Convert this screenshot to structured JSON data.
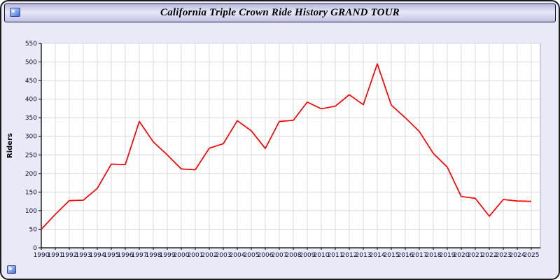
{
  "window": {
    "title": "California Triple Crown Ride History GRAND TOUR"
  },
  "colors": {
    "page_background": "#e9e9f8",
    "plot_background": "#ffffff",
    "grid": "#d8d8e2",
    "axis": "#000000",
    "line": "#ff0000",
    "tick_text": "#101040",
    "title_text": "#000000"
  },
  "chart_data": {
    "type": "line",
    "title": "California Triple Crown Ride History GRAND TOUR",
    "xlabel": "",
    "ylabel": "Riders",
    "ylim": [
      0,
      550
    ],
    "ytick_step": 50,
    "grid": true,
    "legend": "none",
    "x": [
      1990,
      1991,
      1992,
      1993,
      1994,
      1995,
      1996,
      1997,
      1998,
      1999,
      2000,
      2001,
      2002,
      2003,
      2004,
      2005,
      2006,
      2007,
      2008,
      2009,
      2010,
      2011,
      2012,
      2013,
      2014,
      2015,
      2016,
      2017,
      2018,
      2019,
      2020,
      2021,
      2022,
      2023,
      2024,
      2025
    ],
    "series": [
      {
        "name": "Riders",
        "color": "#ff0000",
        "values": [
          50,
          90,
          127,
          128,
          160,
          225,
          224,
          340,
          285,
          250,
          212,
          210,
          268,
          280,
          342,
          315,
          267,
          340,
          343,
          392,
          374,
          381,
          412,
          385,
          495,
          384,
          350,
          313,
          254,
          217,
          138,
          133,
          85,
          130,
          126,
          125
        ]
      }
    ]
  }
}
